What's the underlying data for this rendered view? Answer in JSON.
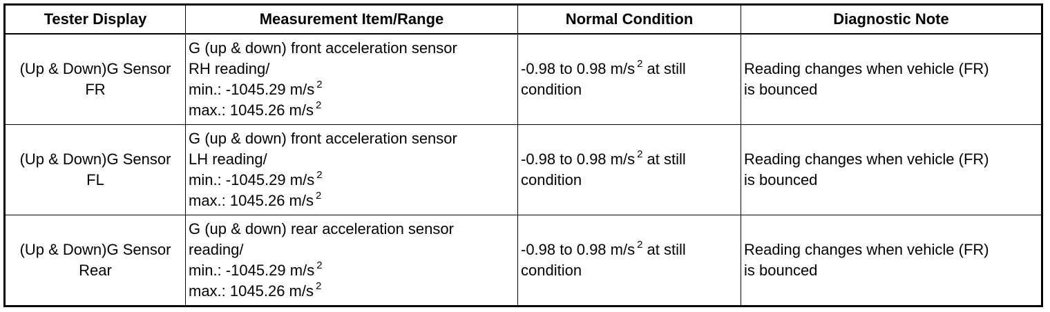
{
  "table": {
    "headers": [
      "Tester Display",
      "Measurement Item/Range",
      "Normal Condition",
      "Diagnostic Note"
    ],
    "rows": [
      {
        "display": [
          "(Up & Down)G Sensor",
          "FR"
        ],
        "measurement": {
          "lines": [
            "G (up & down) front acceleration sensor",
            "RH reading/"
          ],
          "min_label": "min.: -1045.29 m/s",
          "max_label": "max.: 1045.26 m/s",
          "exponent": "2"
        },
        "normal": {
          "pre": "-0.98 to 0.98 m/s",
          "exponent": "2",
          "post": " at still",
          "line2": "condition"
        },
        "note": [
          "Reading changes when vehicle (FR)",
          "is bounced"
        ]
      },
      {
        "display": [
          "(Up & Down)G Sensor",
          "FL"
        ],
        "measurement": {
          "lines": [
            "G (up & down) front acceleration sensor",
            "LH reading/"
          ],
          "min_label": "min.: -1045.29 m/s",
          "max_label": "max.: 1045.26 m/s",
          "exponent": "2"
        },
        "normal": {
          "pre": "-0.98 to 0.98 m/s",
          "exponent": "2",
          "post": " at still",
          "line2": "condition"
        },
        "note": [
          "Reading changes when vehicle (FR)",
          "is bounced"
        ]
      },
      {
        "display": [
          "(Up & Down)G Sensor",
          "Rear"
        ],
        "measurement": {
          "lines": [
            "G (up & down) rear acceleration sensor",
            "reading/"
          ],
          "min_label": "min.: -1045.29 m/s",
          "max_label": "max.: 1045.26 m/s",
          "exponent": "2"
        },
        "normal": {
          "pre": "-0.98 to 0.98 m/s",
          "exponent": "2",
          "post": " at still",
          "line2": "condition"
        },
        "note": [
          "Reading changes when vehicle (FR)",
          "is bounced"
        ]
      }
    ]
  }
}
